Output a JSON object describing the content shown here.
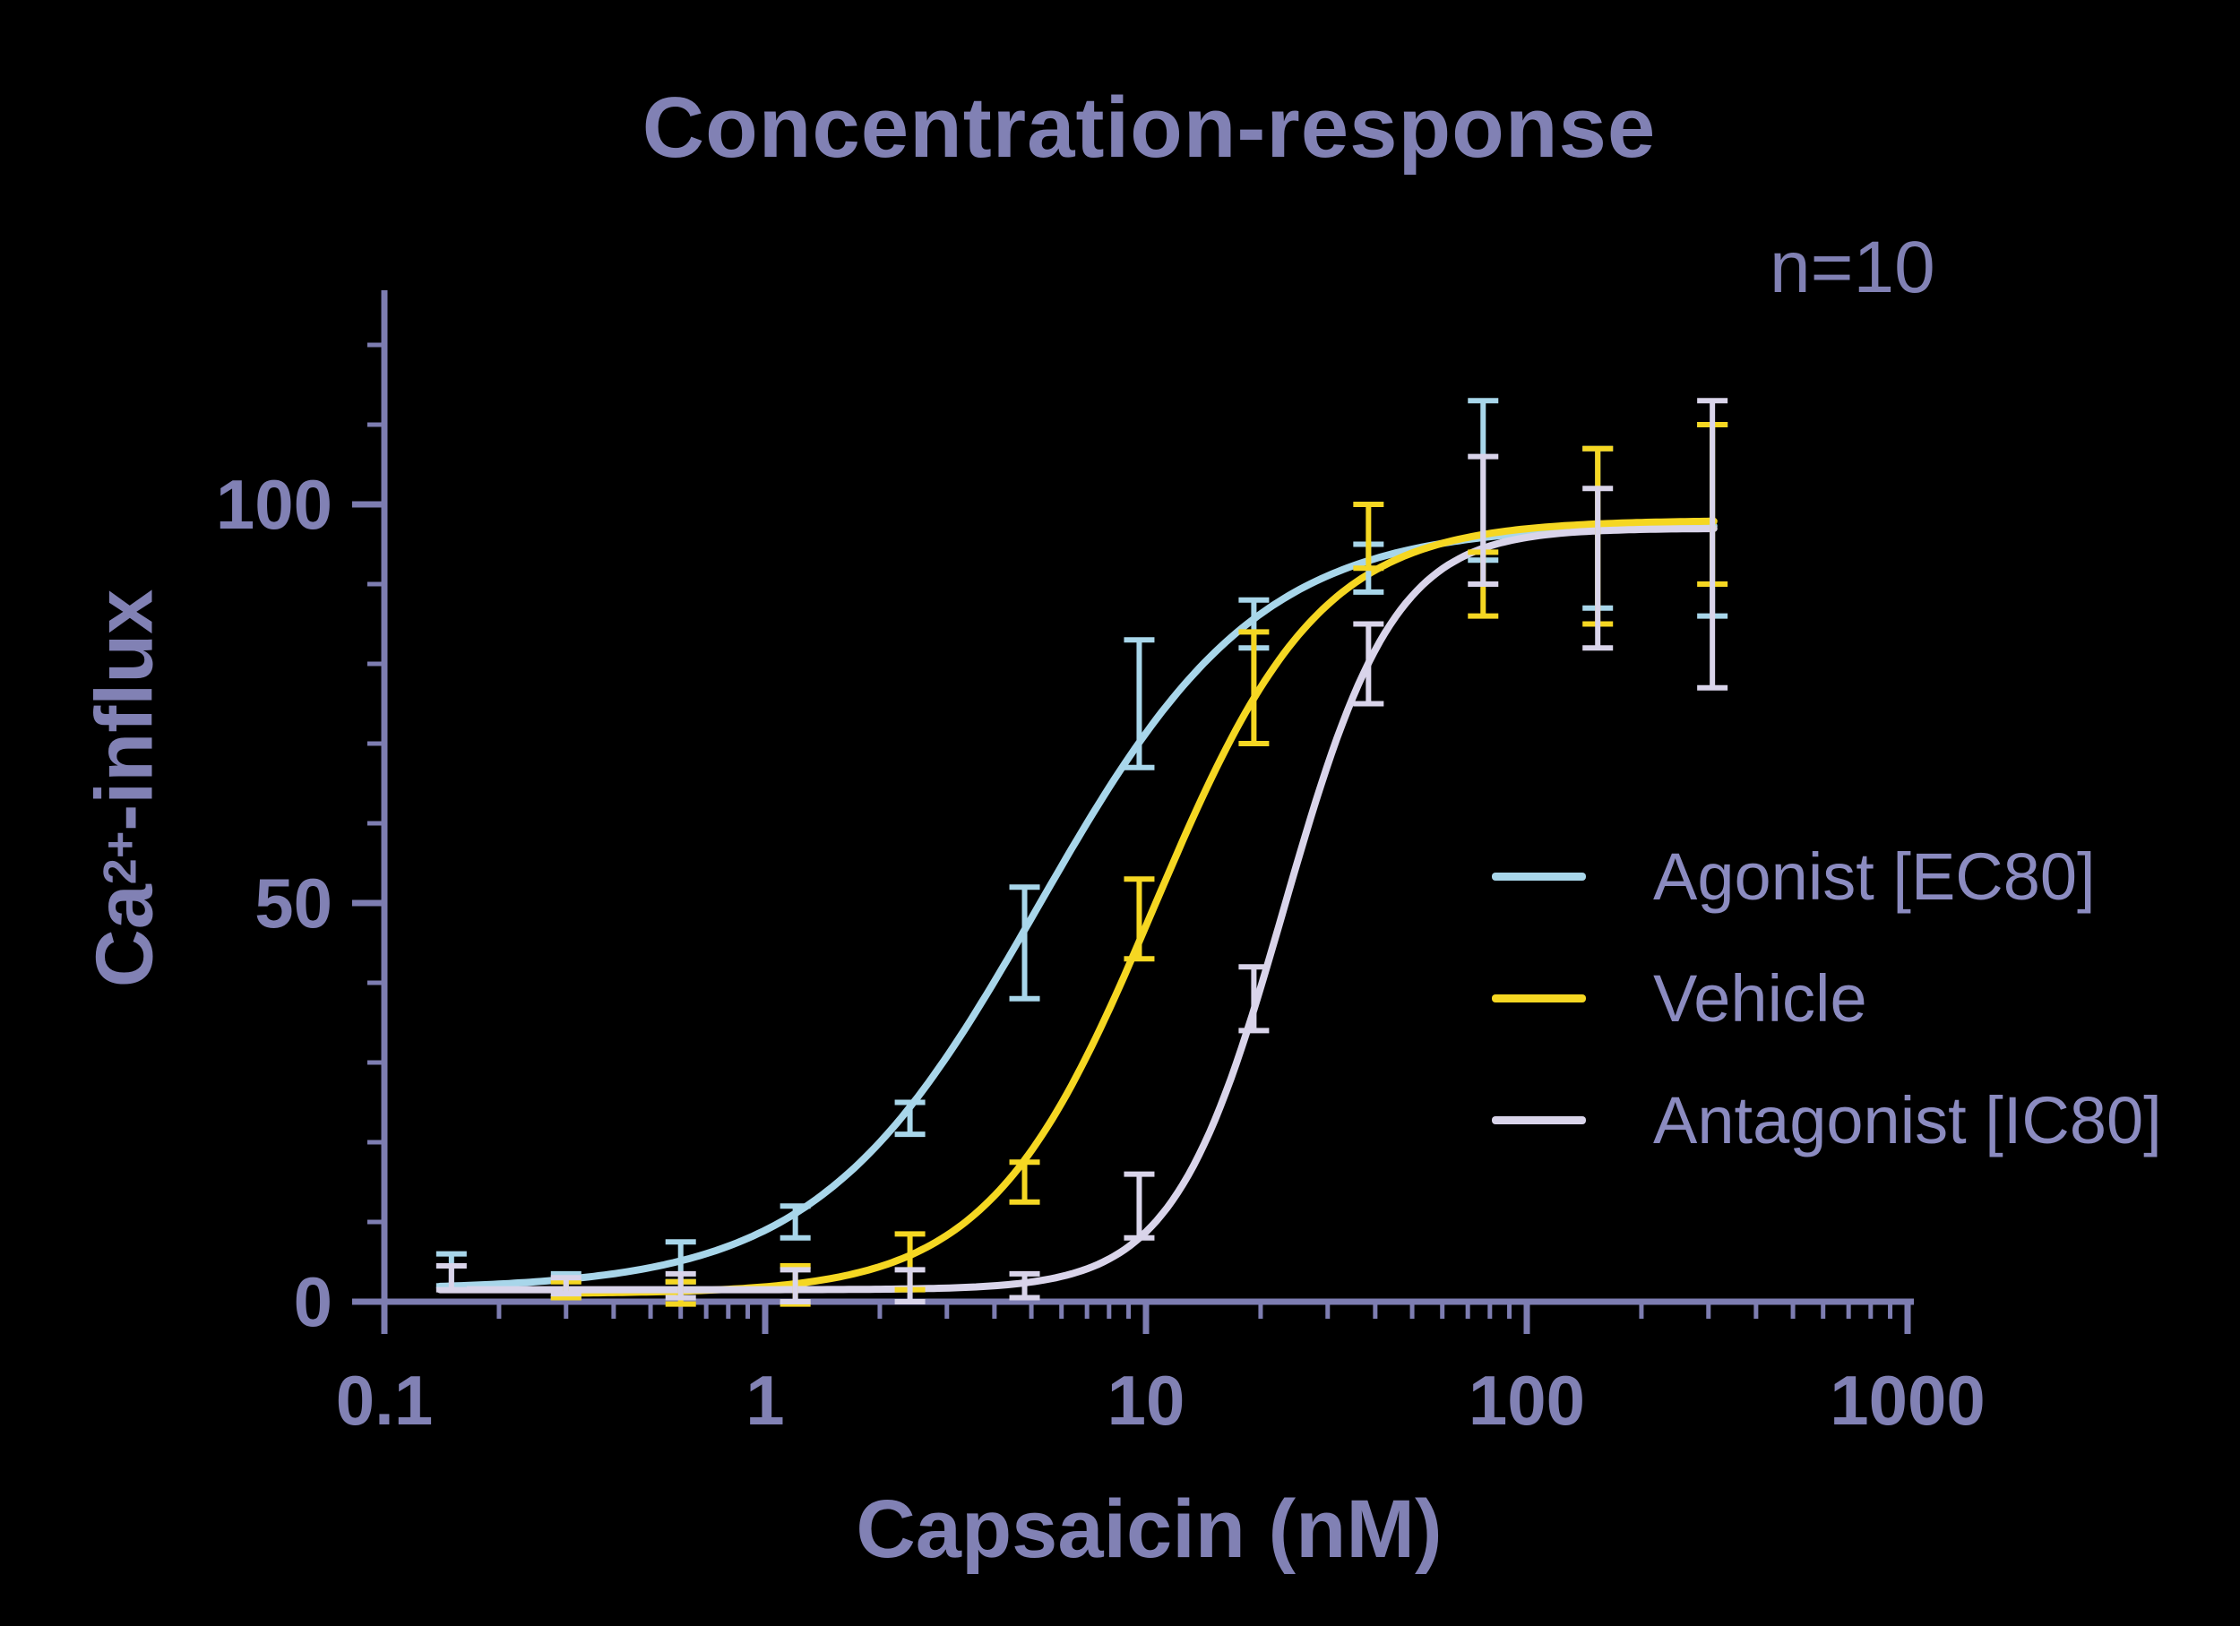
{
  "page": {
    "background": "#000000"
  },
  "chart_data": {
    "type": "line",
    "title": "Concentration-response",
    "annotation": "n=10",
    "xlabel": "Capsaicin (nM)",
    "ylabel": {
      "base": "Ca",
      "superscript": "2+",
      "suffix": "-influx"
    },
    "x_scale": "log",
    "xlim": [
      0.1,
      1000
    ],
    "ylim": [
      0,
      127
    ],
    "grid": "off",
    "axis_color": "#7d7db1",
    "text_color": "#8181b4",
    "legend": {
      "position": "right-middle"
    },
    "xticks": {
      "major": [
        0.1,
        1,
        10,
        100,
        1000
      ],
      "labels": [
        "0.1",
        "1",
        "10",
        "100",
        "1000"
      ]
    },
    "yticks": {
      "major": [
        0,
        50,
        100
      ],
      "labels": [
        "0",
        "50",
        "100"
      ],
      "minor_step": 10,
      "minor_max": 120
    },
    "series": [
      {
        "name": "Agonist [EC80]",
        "color": "#a8d6ea",
        "curve_range": [
          0.14,
          310
        ],
        "fit": {
          "bottom": 1.5,
          "top": 97.5,
          "ec50": 5.2,
          "hill": 1.5
        },
        "points": [
          {
            "x": 0.15,
            "y": 4,
            "err": 2
          },
          {
            "x": 0.3,
            "y": 2,
            "err": 1.5
          },
          {
            "x": 0.6,
            "y": 5,
            "err": 2.5
          },
          {
            "x": 1.2,
            "y": 10,
            "err": 2
          },
          {
            "x": 2.4,
            "y": 23,
            "err": 2
          },
          {
            "x": 4.8,
            "y": 45,
            "err": 7
          },
          {
            "x": 9.6,
            "y": 75,
            "err": 8
          },
          {
            "x": 19.2,
            "y": 85,
            "err": 3
          },
          {
            "x": 38.4,
            "y": 92,
            "err": 3
          },
          {
            "x": 76.8,
            "y": 103,
            "err": 10
          },
          {
            "x": 153.6,
            "y": 97,
            "err": 10
          },
          {
            "x": 307.2,
            "y": 98,
            "err": 12
          }
        ]
      },
      {
        "name": "Vehicle",
        "color": "#f5d722",
        "curve_range": [
          0.28,
          310
        ],
        "fit": {
          "bottom": 1,
          "top": 98,
          "ec50": 10.5,
          "hill": 2.0
        },
        "points": [
          {
            "x": 0.3,
            "y": 1.5,
            "err": 1
          },
          {
            "x": 0.6,
            "y": 1,
            "err": 1.5
          },
          {
            "x": 1.2,
            "y": 2,
            "err": 2.5
          },
          {
            "x": 2.4,
            "y": 5,
            "err": 3.5
          },
          {
            "x": 4.8,
            "y": 15,
            "err": 2.5
          },
          {
            "x": 9.6,
            "y": 48,
            "err": 5
          },
          {
            "x": 19.2,
            "y": 77,
            "err": 7
          },
          {
            "x": 38.4,
            "y": 96,
            "err": 4
          },
          {
            "x": 76.8,
            "y": 90,
            "err": 4
          },
          {
            "x": 153.6,
            "y": 96,
            "err": 11
          },
          {
            "x": 307.2,
            "y": 100,
            "err": 10
          }
        ]
      },
      {
        "name": "Antagonist [IC80]",
        "color": "#d9d4ea",
        "curve_range": [
          0.14,
          310
        ],
        "fit": {
          "bottom": 1.5,
          "top": 97,
          "ec50": 23,
          "hill": 3.0
        },
        "points": [
          {
            "x": 0.15,
            "y": 3,
            "err": 1.5
          },
          {
            "x": 0.3,
            "y": 2,
            "err": 1
          },
          {
            "x": 0.6,
            "y": 2,
            "err": 1.5
          },
          {
            "x": 1.2,
            "y": 2,
            "err": 2
          },
          {
            "x": 2.4,
            "y": 2,
            "err": 2
          },
          {
            "x": 4.8,
            "y": 2,
            "err": 1.5
          },
          {
            "x": 9.6,
            "y": 12,
            "err": 4
          },
          {
            "x": 19.2,
            "y": 38,
            "err": 4
          },
          {
            "x": 38.4,
            "y": 80,
            "err": 5
          },
          {
            "x": 76.8,
            "y": 98,
            "err": 8
          },
          {
            "x": 153.6,
            "y": 92,
            "err": 10
          },
          {
            "x": 307.2,
            "y": 95,
            "err": 18
          }
        ]
      }
    ]
  }
}
